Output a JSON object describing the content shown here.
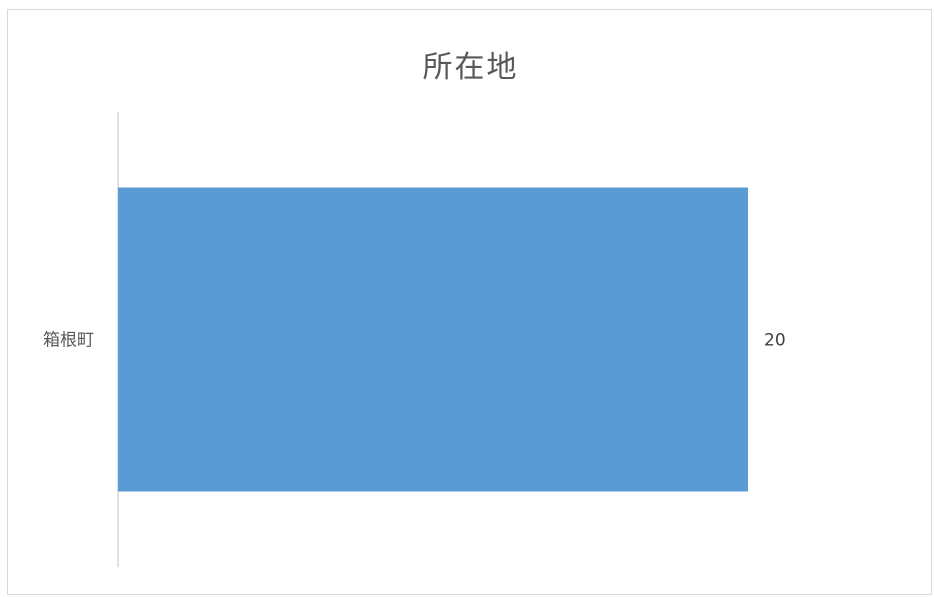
{
  "chart_data": {
    "type": "bar",
    "orientation": "horizontal",
    "title": "所在地",
    "categories": [
      "箱根町"
    ],
    "series": [
      {
        "values": [
          20
        ],
        "color": "#5b9bd5"
      }
    ],
    "data_labels": true,
    "xlim": [
      0,
      20
    ],
    "grid": false,
    "legend": "none"
  }
}
